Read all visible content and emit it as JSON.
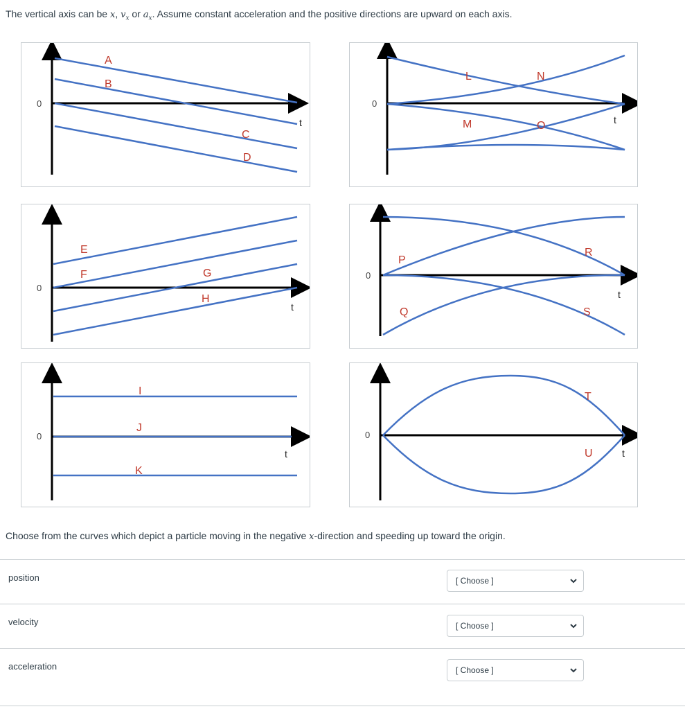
{
  "intro": {
    "prefix": "The vertical axis can be ",
    "var_x": "x",
    "sep1": ", ",
    "var_vx": "v",
    "sub_vx": "x",
    "sep2": " or ",
    "var_ax": "a",
    "sub_ax": "x",
    "suffix": ". Assume constant acceleration and the positive directions are upward on each axis."
  },
  "graphs": {
    "zero_label": "0",
    "t_label": "t",
    "g1": {
      "labels": [
        "A",
        "B",
        "C",
        "D"
      ]
    },
    "g2": {
      "labels": [
        "L",
        "M",
        "N",
        "O"
      ]
    },
    "g3": {
      "labels": [
        "E",
        "F",
        "G",
        "H"
      ]
    },
    "g4": {
      "labels": [
        "P",
        "Q",
        "R",
        "S"
      ]
    },
    "g5": {
      "labels": [
        "I",
        "J",
        "K"
      ]
    },
    "g6": {
      "labels": [
        "T",
        "U"
      ]
    }
  },
  "question": {
    "prefix": "Choose from the curves which depict a particle moving in the negative ",
    "var": "x",
    "suffix": "-direction and speeding up toward the origin."
  },
  "rows": [
    {
      "label": "position",
      "value": "[ Choose ]"
    },
    {
      "label": "velocity",
      "value": "[ Choose ]"
    },
    {
      "label": "acceleration",
      "value": "[ Choose ]"
    }
  ],
  "colors": {
    "curve": "#4472c4",
    "label": "#c0392b",
    "axis": "#000000",
    "border": "#c7cdd1"
  }
}
